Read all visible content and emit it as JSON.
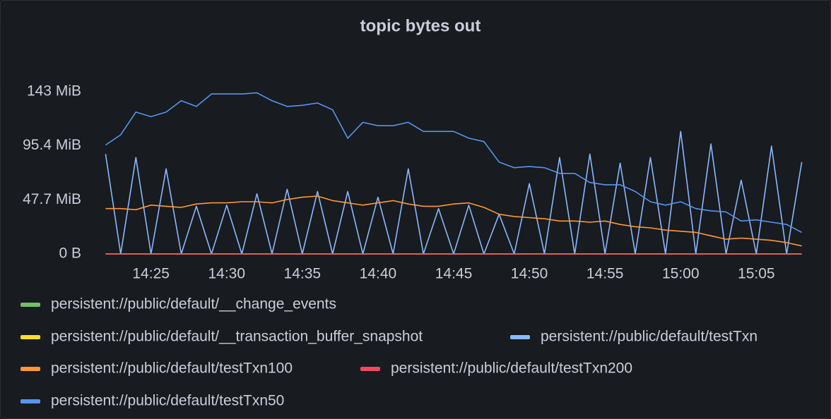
{
  "chart_data": {
    "type": "line",
    "title": "topic bytes out",
    "x": [
      "14:22",
      "14:23",
      "14:24",
      "14:25",
      "14:26",
      "14:27",
      "14:28",
      "14:29",
      "14:30",
      "14:31",
      "14:32",
      "14:33",
      "14:34",
      "14:35",
      "14:36",
      "14:37",
      "14:38",
      "14:39",
      "14:40",
      "14:41",
      "14:42",
      "14:43",
      "14:44",
      "14:45",
      "14:46",
      "14:47",
      "14:48",
      "14:49",
      "14:50",
      "14:51",
      "14:52",
      "14:53",
      "14:54",
      "14:55",
      "14:56",
      "14:57",
      "14:58",
      "14:59",
      "15:00",
      "15:01",
      "15:02",
      "15:03",
      "15:04",
      "15:05",
      "15:06",
      "15:07",
      "15:08"
    ],
    "xlim": [
      "14:21",
      "15:09"
    ],
    "xticks": [
      "14:25",
      "14:30",
      "14:35",
      "14:40",
      "14:45",
      "14:50",
      "14:55",
      "15:00",
      "15:05"
    ],
    "ylim": [
      0,
      150
    ],
    "yticks": [
      {
        "value": 0,
        "label": "0 B"
      },
      {
        "value": 47.7,
        "label": "47.7 MiB"
      },
      {
        "value": 95.4,
        "label": "95.4 MiB"
      },
      {
        "value": 143,
        "label": "143 MiB"
      }
    ],
    "series": [
      {
        "name": "persistent://public/default/__change_events",
        "color": "#73bf69",
        "values": [
          0,
          0,
          0,
          0,
          0,
          0,
          0,
          0,
          0,
          0,
          0,
          0,
          0,
          0,
          0,
          0,
          0,
          0,
          0,
          0,
          0,
          0,
          0,
          0,
          0,
          0,
          0,
          0,
          0,
          0,
          0,
          0,
          0,
          0,
          0,
          0,
          0,
          0,
          0,
          0,
          0,
          0,
          0,
          0,
          0,
          0,
          0
        ]
      },
      {
        "name": "persistent://public/default/__transaction_buffer_snapshot",
        "color": "#fade2a",
        "values": [
          0,
          0,
          0,
          0,
          0,
          0,
          0,
          0,
          0,
          0,
          0,
          0,
          0,
          0,
          0,
          0,
          0,
          0,
          0,
          0,
          0,
          0,
          0,
          0,
          0,
          0,
          0,
          0,
          0,
          0,
          0,
          0,
          0,
          0,
          0,
          0,
          0,
          0,
          0,
          0,
          0,
          0,
          0,
          0,
          0,
          0,
          0
        ]
      },
      {
        "name": "persistent://public/default/testTxn",
        "color": "#8ab8ff",
        "values": [
          88,
          0,
          85,
          0,
          75,
          0,
          42,
          0,
          43,
          0,
          53,
          0,
          57,
          0,
          55,
          0,
          55,
          0,
          50,
          0,
          75,
          0,
          40,
          0,
          43,
          0,
          35,
          0,
          62,
          0,
          85,
          0,
          88,
          0,
          80,
          0,
          85,
          0,
          108,
          0,
          97,
          0,
          65,
          0,
          95,
          0,
          81
        ]
      },
      {
        "name": "persistent://public/default/testTxn100",
        "color": "#ff9830",
        "values": [
          40,
          40,
          39,
          43,
          42,
          41,
          44,
          45,
          45,
          46,
          46,
          45,
          48,
          50,
          51,
          47,
          45,
          43,
          45,
          47,
          44,
          42,
          42,
          44,
          45,
          41,
          35,
          33,
          32,
          31,
          29,
          29,
          28,
          29,
          26,
          24,
          23,
          21,
          20,
          19,
          16,
          13,
          14,
          13,
          12,
          10,
          7
        ]
      },
      {
        "name": "persistent://public/default/testTxn200",
        "color": "#f2495c",
        "values": [
          0,
          0,
          0,
          0,
          0,
          0,
          0,
          0,
          0,
          0,
          0,
          0,
          0,
          0,
          0,
          0,
          0,
          0,
          0,
          0,
          0,
          0,
          0,
          0,
          0,
          0,
          0,
          0,
          0,
          0,
          0,
          0,
          0,
          0,
          0,
          0,
          0,
          0,
          0,
          0,
          0,
          0,
          0,
          0,
          0,
          0,
          0
        ]
      },
      {
        "name": "persistent://public/default/testTxn50",
        "color": "#5794f2",
        "values": [
          96,
          105,
          125,
          121,
          125,
          135,
          130,
          141,
          141,
          141,
          142,
          135,
          130,
          131,
          133,
          127,
          102,
          116,
          113,
          113,
          116,
          108,
          108,
          108,
          102,
          99,
          81,
          76,
          77,
          76,
          71,
          71,
          63,
          61,
          61,
          55,
          46,
          43,
          46,
          40,
          38,
          37,
          29,
          30,
          28,
          26,
          19
        ]
      }
    ]
  }
}
